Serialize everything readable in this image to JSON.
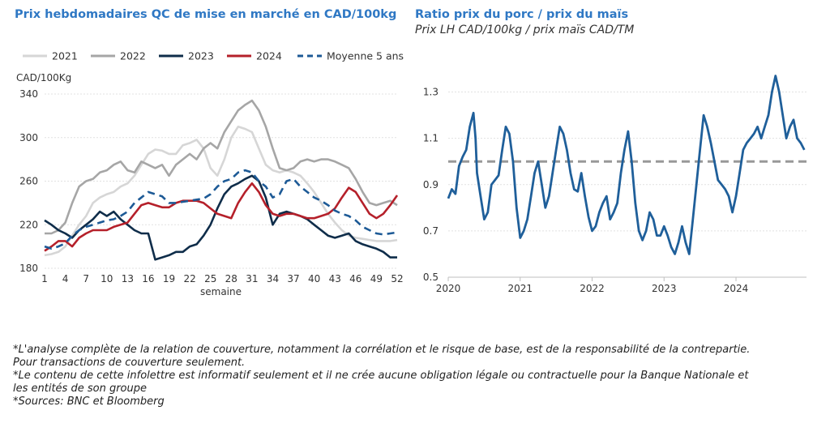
{
  "left_title": "Prix hebdomadaires QC de mise en marché en CAD/100kg",
  "right_title": "Ratio prix du porc / prix du maïs",
  "right_subtitle": "Prix LH CAD/100kg / prix maïs CAD/TM",
  "notes": [
    "*L'analyse complète de la relation de couverture, notamment la corrélation et le risque de base, est de la responsabilité de la contrepartie.",
    "Pour transactions de couverture seulement.",
    "*Le contenu de cette infolettre est informatif seulement et il ne crée aucune obligation légale ou contractuelle pour la Banque Nationale et",
    "les entités de son groupe",
    "*Sources: BNC et Bloomberg"
  ],
  "chart_data": [
    {
      "type": "line",
      "ylabel": "CAD/100Kg",
      "xlabel": "semaine",
      "ylim": [
        180,
        340
      ],
      "yticks": [
        180,
        220,
        260,
        300,
        340
      ],
      "xlim": [
        1,
        52
      ],
      "xticks": [
        1,
        4,
        7,
        10,
        13,
        16,
        19,
        22,
        25,
        28,
        31,
        34,
        37,
        40,
        43,
        46,
        49,
        52
      ],
      "grid": true,
      "legend": "top",
      "x": [
        1,
        2,
        3,
        4,
        5,
        6,
        7,
        8,
        9,
        10,
        11,
        12,
        13,
        14,
        15,
        16,
        17,
        18,
        19,
        20,
        21,
        22,
        23,
        24,
        25,
        26,
        27,
        28,
        29,
        30,
        31,
        32,
        33,
        34,
        35,
        36,
        37,
        38,
        39,
        40,
        41,
        42,
        43,
        44,
        45,
        46,
        47,
        48,
        49,
        50,
        51,
        52
      ],
      "series": [
        {
          "name": "2021",
          "color": "#d6d6d6",
          "dash": "solid",
          "values": [
            192,
            193,
            195,
            200,
            210,
            220,
            228,
            240,
            245,
            248,
            250,
            255,
            258,
            265,
            275,
            285,
            289,
            288,
            285,
            285,
            293,
            295,
            298,
            290,
            272,
            265,
            280,
            300,
            310,
            308,
            305,
            290,
            275,
            270,
            268,
            270,
            268,
            265,
            258,
            250,
            240,
            230,
            222,
            215,
            210,
            208,
            207,
            206,
            205,
            205,
            205,
            206
          ]
        },
        {
          "name": "2022",
          "color": "#a6a6a6",
          "dash": "solid",
          "values": [
            212,
            212,
            215,
            222,
            240,
            255,
            260,
            262,
            268,
            270,
            275,
            278,
            270,
            268,
            278,
            275,
            272,
            275,
            265,
            275,
            280,
            285,
            280,
            290,
            295,
            290,
            305,
            315,
            325,
            330,
            334,
            325,
            310,
            290,
            272,
            270,
            272,
            278,
            280,
            278,
            280,
            280,
            278,
            275,
            272,
            262,
            250,
            240,
            238,
            240,
            242,
            238
          ]
        },
        {
          "name": "2023",
          "color": "#0f2d4a",
          "dash": "solid",
          "values": [
            224,
            220,
            215,
            212,
            208,
            215,
            220,
            225,
            232,
            228,
            232,
            225,
            220,
            215,
            212,
            212,
            188,
            190,
            192,
            195,
            195,
            200,
            202,
            210,
            220,
            235,
            248,
            255,
            258,
            262,
            265,
            260,
            245,
            220,
            230,
            232,
            230,
            228,
            225,
            220,
            215,
            210,
            208,
            210,
            212,
            205,
            202,
            200,
            198,
            195,
            190,
            190
          ]
        },
        {
          "name": "2024",
          "color": "#b5202a",
          "dash": "solid",
          "values": [
            196,
            200,
            205,
            205,
            200,
            208,
            212,
            215,
            215,
            215,
            218,
            220,
            222,
            230,
            238,
            240,
            238,
            236,
            236,
            240,
            242,
            242,
            242,
            240,
            235,
            230,
            228,
            226,
            240,
            250,
            258,
            250,
            238,
            230,
            228,
            230,
            230,
            228,
            226,
            226,
            228,
            230,
            235,
            245,
            254,
            250,
            240,
            230,
            226,
            230,
            238,
            247
          ]
        },
        {
          "name": "Moyenne 5 ans",
          "color": "#1d5a96",
          "dash": "dashed",
          "values": [
            200,
            198,
            200,
            203,
            210,
            215,
            218,
            220,
            222,
            224,
            225,
            228,
            232,
            240,
            245,
            250,
            248,
            246,
            240,
            240,
            241,
            242,
            243,
            244,
            248,
            255,
            260,
            262,
            268,
            270,
            268,
            260,
            255,
            245,
            248,
            260,
            262,
            255,
            250,
            245,
            242,
            238,
            233,
            230,
            228,
            224,
            218,
            215,
            212,
            211,
            212,
            213
          ]
        }
      ]
    },
    {
      "type": "line",
      "title": "Ratio prix du porc / prix du maïs",
      "subtitle": "Prix LH CAD/100kg / prix maïs CAD/TM",
      "ylim": [
        0.5,
        1.4
      ],
      "yticks": [
        0.5,
        0.7,
        0.9,
        1.1,
        1.3
      ],
      "xlim": [
        2020.0,
        2024.98
      ],
      "xticks": [
        2020,
        2021,
        2022,
        2023,
        2024
      ],
      "grid": true,
      "reference_line": 1.0,
      "series": [
        {
          "name": "",
          "color": "#1f5f9a",
          "x": [
            2020.0,
            2020.05,
            2020.1,
            2020.15,
            2020.2,
            2020.25,
            2020.3,
            2020.35,
            2020.38,
            2020.4,
            2020.45,
            2020.5,
            2020.55,
            2020.6,
            2020.65,
            2020.7,
            2020.75,
            2020.8,
            2020.85,
            2020.9,
            2020.95,
            2021.0,
            2021.05,
            2021.1,
            2021.15,
            2021.2,
            2021.25,
            2021.3,
            2021.35,
            2021.4,
            2021.45,
            2021.5,
            2021.55,
            2021.6,
            2021.65,
            2021.7,
            2021.75,
            2021.8,
            2021.85,
            2021.9,
            2021.95,
            2022.0,
            2022.05,
            2022.1,
            2022.15,
            2022.2,
            2022.25,
            2022.3,
            2022.35,
            2022.4,
            2022.45,
            2022.5,
            2022.55,
            2022.6,
            2022.65,
            2022.7,
            2022.75,
            2022.8,
            2022.85,
            2022.9,
            2022.95,
            2023.0,
            2023.05,
            2023.1,
            2023.15,
            2023.2,
            2023.25,
            2023.3,
            2023.35,
            2023.4,
            2023.45,
            2023.5,
            2023.55,
            2023.6,
            2023.65,
            2023.7,
            2023.75,
            2023.8,
            2023.85,
            2023.9,
            2023.95,
            2024.0,
            2024.05,
            2024.1,
            2024.15,
            2024.2,
            2024.25,
            2024.3,
            2024.35,
            2024.4,
            2024.45,
            2024.5,
            2024.55,
            2024.6,
            2024.65,
            2024.7,
            2024.75,
            2024.8,
            2024.85,
            2024.9,
            2024.95
          ],
          "values": [
            0.84,
            0.88,
            0.86,
            0.98,
            1.02,
            1.05,
            1.15,
            1.21,
            1.1,
            0.95,
            0.85,
            0.75,
            0.78,
            0.9,
            0.92,
            0.94,
            1.05,
            1.15,
            1.12,
            1.0,
            0.8,
            0.67,
            0.7,
            0.75,
            0.85,
            0.95,
            1.0,
            0.9,
            0.8,
            0.85,
            0.95,
            1.05,
            1.15,
            1.12,
            1.05,
            0.95,
            0.88,
            0.87,
            0.95,
            0.85,
            0.76,
            0.7,
            0.72,
            0.78,
            0.82,
            0.85,
            0.75,
            0.78,
            0.82,
            0.95,
            1.05,
            1.13,
            1.0,
            0.82,
            0.7,
            0.66,
            0.7,
            0.78,
            0.75,
            0.68,
            0.68,
            0.72,
            0.68,
            0.63,
            0.6,
            0.65,
            0.72,
            0.65,
            0.6,
            0.75,
            0.9,
            1.05,
            1.2,
            1.15,
            1.08,
            1.0,
            0.92,
            0.9,
            0.88,
            0.85,
            0.78,
            0.85,
            0.95,
            1.05,
            1.08,
            1.1,
            1.12,
            1.15,
            1.1,
            1.15,
            1.2,
            1.3,
            1.37,
            1.3,
            1.2,
            1.1,
            1.15,
            1.18,
            1.1,
            1.08,
            1.05
          ]
        }
      ]
    }
  ]
}
